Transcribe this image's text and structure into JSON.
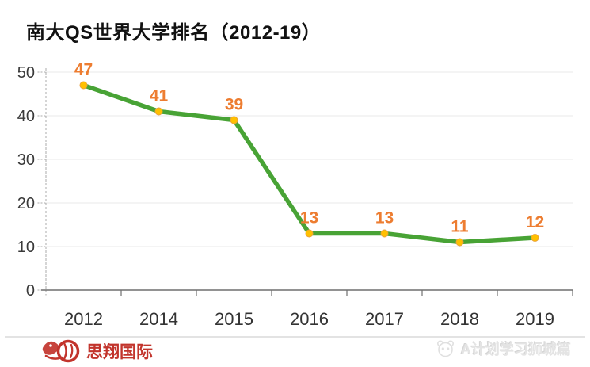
{
  "title": "南大QS世界大学排名（2012-19）",
  "chart_data": {
    "type": "line",
    "title": "南大QS世界大学排名（2012-19）",
    "categories": [
      "2012",
      "2014",
      "2015",
      "2016",
      "2017",
      "2018",
      "2019"
    ],
    "values": [
      47,
      41,
      39,
      13,
      13,
      11,
      12
    ],
    "data_labels": [
      "47",
      "41",
      "39",
      "13",
      "13",
      "11",
      "12"
    ],
    "xlabel": "",
    "ylabel": "",
    "ylim": [
      0,
      50
    ],
    "yticks": [
      0,
      10,
      20,
      30,
      40,
      50
    ],
    "grid": "horizontal",
    "legend": "none",
    "colors": {
      "line": "#48A335",
      "marker_fill": "#FFC000",
      "marker_stroke": "#E9A13B",
      "data_label": "#ED7D31"
    }
  },
  "footer": {
    "brand": "思翔国际",
    "brand_color": "#c2342c",
    "watermark": "A计划学习狮城篇"
  }
}
